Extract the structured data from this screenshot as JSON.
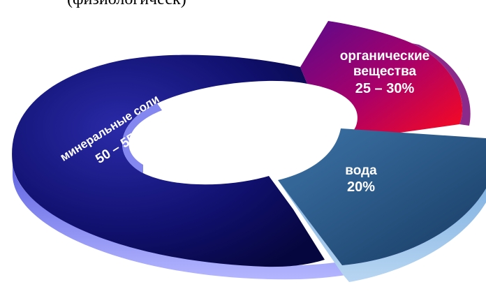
{
  "top_text": "(физиологическ)",
  "chart_data": {
    "type": "pie",
    "title": "",
    "series": [
      {
        "values": [
          {
            "label_lines": [
              "минеральные соли",
              "50 – 55%"
            ],
            "value": 52.5,
            "range": "50 – 55%"
          },
          {
            "label_lines": [
              "органические",
              "вещества",
              "25 – 30%"
            ],
            "value": 27.5,
            "range": "25 – 30%"
          },
          {
            "label_lines": [
              "вода",
              "20%"
            ],
            "value": 20,
            "range": "20%"
          }
        ]
      }
    ],
    "colors": {
      "minerals": "#0a0a6e",
      "organic": "#c0006a",
      "water": "#2a5a8c",
      "rim": "#7b7ff0"
    }
  }
}
